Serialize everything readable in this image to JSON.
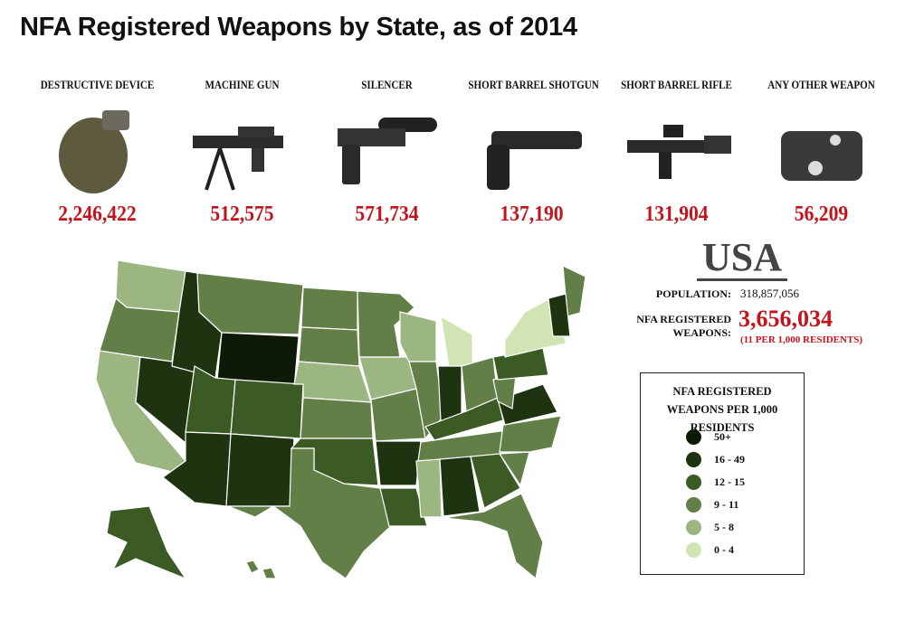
{
  "title": "NFA Registered Weapons by State, as of 2014",
  "weapons": [
    {
      "label": "DESTRUCTIVE DEVICE",
      "count": "2,246,422"
    },
    {
      "label": "MACHINE GUN",
      "count": "512,575"
    },
    {
      "label": "SILENCER",
      "count": "571,734"
    },
    {
      "label": "SHORT BARREL SHOTGUN",
      "count": "137,190"
    },
    {
      "label": "SHORT BARREL RIFLE",
      "count": "131,904"
    },
    {
      "label": "ANY OTHER WEAPON",
      "count": "56,209"
    }
  ],
  "usa": {
    "heading": "USA",
    "population_label": "POPULATION:",
    "population": "318,857,056",
    "weapons_label": "NFA REGISTERED WEAPONS:",
    "weapons": "3,656,034",
    "rate": "(11 PER 1,000 RESIDENTS)"
  },
  "legend": {
    "title": "NFA REGISTERED WEAPONS PER 1,000 RESIDENTS",
    "classes": [
      {
        "label": "50+",
        "color": "#0d1a07"
      },
      {
        "label": "16 - 49",
        "color": "#1e3410"
      },
      {
        "label": "12 - 15",
        "color": "#3b5a24"
      },
      {
        "label": "9 - 11",
        "color": "#617f46"
      },
      {
        "label": "5 - 8",
        "color": "#9cb681"
      },
      {
        "label": "0 - 4",
        "color": "#d0e5b3"
      }
    ]
  }
}
